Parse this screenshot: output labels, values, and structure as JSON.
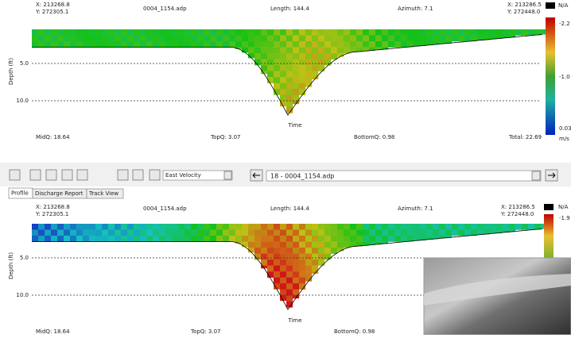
{
  "top_panel": {
    "start_x": "X: 213268.8",
    "start_y": "Y: 272305.1",
    "file": "0004_1154.adp",
    "length": "Length: 144.4",
    "azimuth": "Azimuth: 7.1",
    "end_x": "X: 213286.5",
    "end_y": "Y: 272448.0",
    "na": "N/A",
    "scale_labels": [
      "-2.2",
      "-1.0",
      "0.03"
    ],
    "unit": "m/s",
    "y_axis_label": "Depth (ft)",
    "depth_ticks": [
      "5.0",
      "10.0"
    ],
    "x_axis_label": "Time",
    "midq": "MidQ: 18.64",
    "topq": "TopQ: 3.07",
    "bottomq": "BottomQ: 0.98",
    "total": "Total: 22.69"
  },
  "toolbar": {
    "variable": "East Velocity",
    "file_select": "18 - 0004_1154.adp"
  },
  "tabs": [
    "Profile",
    "Discharge Report",
    "Track View"
  ],
  "bottom_panel": {
    "start_x": "X: 213268.8",
    "start_y": "Y: 272305.1",
    "file": "0004_1154.adp",
    "length": "Length: 144.4",
    "azimuth": "Azimuth: 7.1",
    "end_x": "X: 213286.5",
    "end_y": "Y: 272448.0",
    "na": "N/A",
    "scale_labels": [
      "-1.9"
    ],
    "y_axis_label": "Depth (ft)",
    "depth_ticks": [
      "5.0",
      "10.0"
    ],
    "x_axis_label": "Time",
    "midq": "MidQ: 18.64",
    "topq": "TopQ: 3.07",
    "bottomq": "BottomQ: 0.98"
  }
}
